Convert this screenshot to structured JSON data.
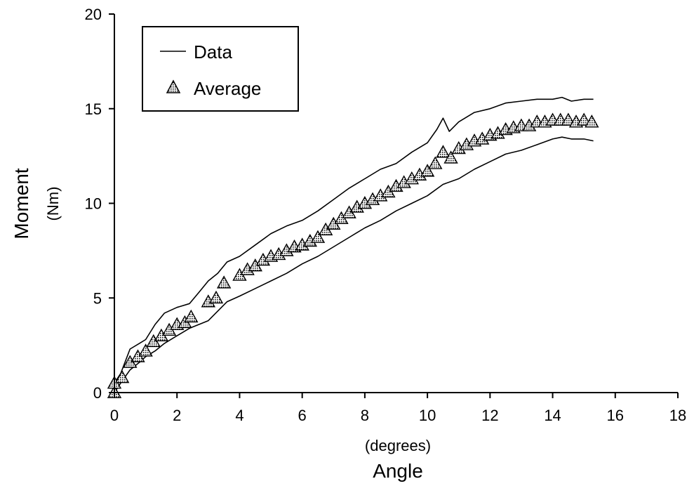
{
  "chart_data": {
    "type": "line",
    "xlabel": "Angle",
    "xunit": "(degrees)",
    "ylabel": "Moment",
    "yunit": "(Nm)",
    "xlim": [
      0,
      18
    ],
    "ylim": [
      0,
      20
    ],
    "xticks": [
      0,
      2,
      4,
      6,
      8,
      10,
      12,
      14,
      16,
      18
    ],
    "yticks": [
      0,
      5,
      10,
      15,
      20
    ],
    "grid": false,
    "legend_position": "top-left",
    "legend": [
      {
        "label": "Data",
        "marker": "line"
      },
      {
        "label": "Average",
        "marker": "triangle"
      }
    ],
    "series": [
      {
        "name": "Data",
        "style": "line",
        "x": [
          0,
          0.2,
          0.5,
          0.8,
          1.0,
          1.3,
          1.6,
          2.0,
          2.4,
          2.7,
          3.0,
          3.3,
          3.6,
          4.0,
          4.5,
          5.0,
          5.5,
          6.0,
          6.5,
          7.0,
          7.5,
          8.0,
          8.5,
          9.0,
          9.5,
          10.0,
          10.3,
          10.5,
          10.7,
          11.0,
          11.5,
          12.0,
          12.5,
          13.0,
          13.5,
          14.0,
          14.3,
          14.6,
          15.0,
          15.3
        ],
        "y": [
          0.5,
          1.0,
          2.3,
          2.6,
          2.8,
          3.6,
          4.2,
          4.5,
          4.7,
          5.3,
          5.9,
          6.3,
          6.9,
          7.2,
          7.8,
          8.4,
          8.8,
          9.1,
          9.6,
          10.2,
          10.8,
          11.3,
          11.8,
          12.1,
          12.7,
          13.2,
          13.9,
          14.5,
          13.8,
          14.3,
          14.8,
          15.0,
          15.3,
          15.4,
          15.5,
          15.5,
          15.6,
          15.4,
          15.5,
          15.5
        ]
      },
      {
        "name": "Data",
        "style": "line",
        "x": [
          0,
          0.2,
          0.5,
          0.8,
          1.0,
          1.3,
          1.6,
          2.0,
          2.4,
          2.7,
          3.0,
          3.3,
          3.6,
          4.0,
          4.5,
          5.0,
          5.5,
          6.0,
          6.5,
          7.0,
          7.5,
          8.0,
          8.5,
          9.0,
          9.5,
          10.0,
          10.5,
          11.0,
          11.5,
          12.0,
          12.5,
          13.0,
          13.5,
          14.0,
          14.3,
          14.6,
          15.0,
          15.3
        ],
        "y": [
          0.0,
          0.5,
          1.2,
          1.6,
          1.9,
          2.2,
          2.6,
          3.0,
          3.4,
          3.6,
          3.8,
          4.3,
          4.8,
          5.1,
          5.5,
          5.9,
          6.3,
          6.8,
          7.2,
          7.7,
          8.2,
          8.7,
          9.1,
          9.6,
          10.0,
          10.4,
          11.0,
          11.3,
          11.8,
          12.2,
          12.6,
          12.8,
          13.1,
          13.4,
          13.5,
          13.4,
          13.4,
          13.3
        ]
      },
      {
        "name": "Average",
        "style": "markers",
        "x": [
          0.0,
          0.0,
          0.25,
          0.5,
          0.75,
          1.0,
          1.25,
          1.5,
          1.75,
          2.0,
          2.25,
          2.45,
          3.0,
          3.25,
          3.5,
          4.0,
          4.25,
          4.5,
          4.75,
          5.0,
          5.25,
          5.5,
          5.75,
          6.0,
          6.25,
          6.5,
          6.75,
          7.0,
          7.25,
          7.5,
          7.75,
          8.0,
          8.25,
          8.5,
          8.75,
          9.0,
          9.25,
          9.5,
          9.75,
          10.0,
          10.25,
          10.5,
          10.75,
          11.0,
          11.25,
          11.5,
          11.75,
          12.0,
          12.25,
          12.5,
          12.75,
          13.0,
          13.25,
          13.5,
          13.75,
          14.0,
          14.25,
          14.5,
          14.75,
          15.0,
          15.25
        ],
        "y": [
          0.0,
          0.5,
          0.8,
          1.6,
          1.9,
          2.2,
          2.7,
          3.0,
          3.3,
          3.6,
          3.7,
          4.0,
          4.8,
          5.0,
          5.8,
          6.2,
          6.5,
          6.7,
          7.0,
          7.2,
          7.3,
          7.5,
          7.7,
          7.8,
          8.0,
          8.2,
          8.6,
          8.9,
          9.2,
          9.5,
          9.8,
          10.0,
          10.2,
          10.4,
          10.6,
          10.9,
          11.1,
          11.3,
          11.5,
          11.7,
          12.1,
          12.7,
          12.4,
          12.9,
          13.1,
          13.3,
          13.4,
          13.6,
          13.7,
          13.9,
          14.0,
          14.1,
          14.1,
          14.3,
          14.3,
          14.4,
          14.4,
          14.4,
          14.3,
          14.4,
          14.3
        ]
      }
    ]
  }
}
